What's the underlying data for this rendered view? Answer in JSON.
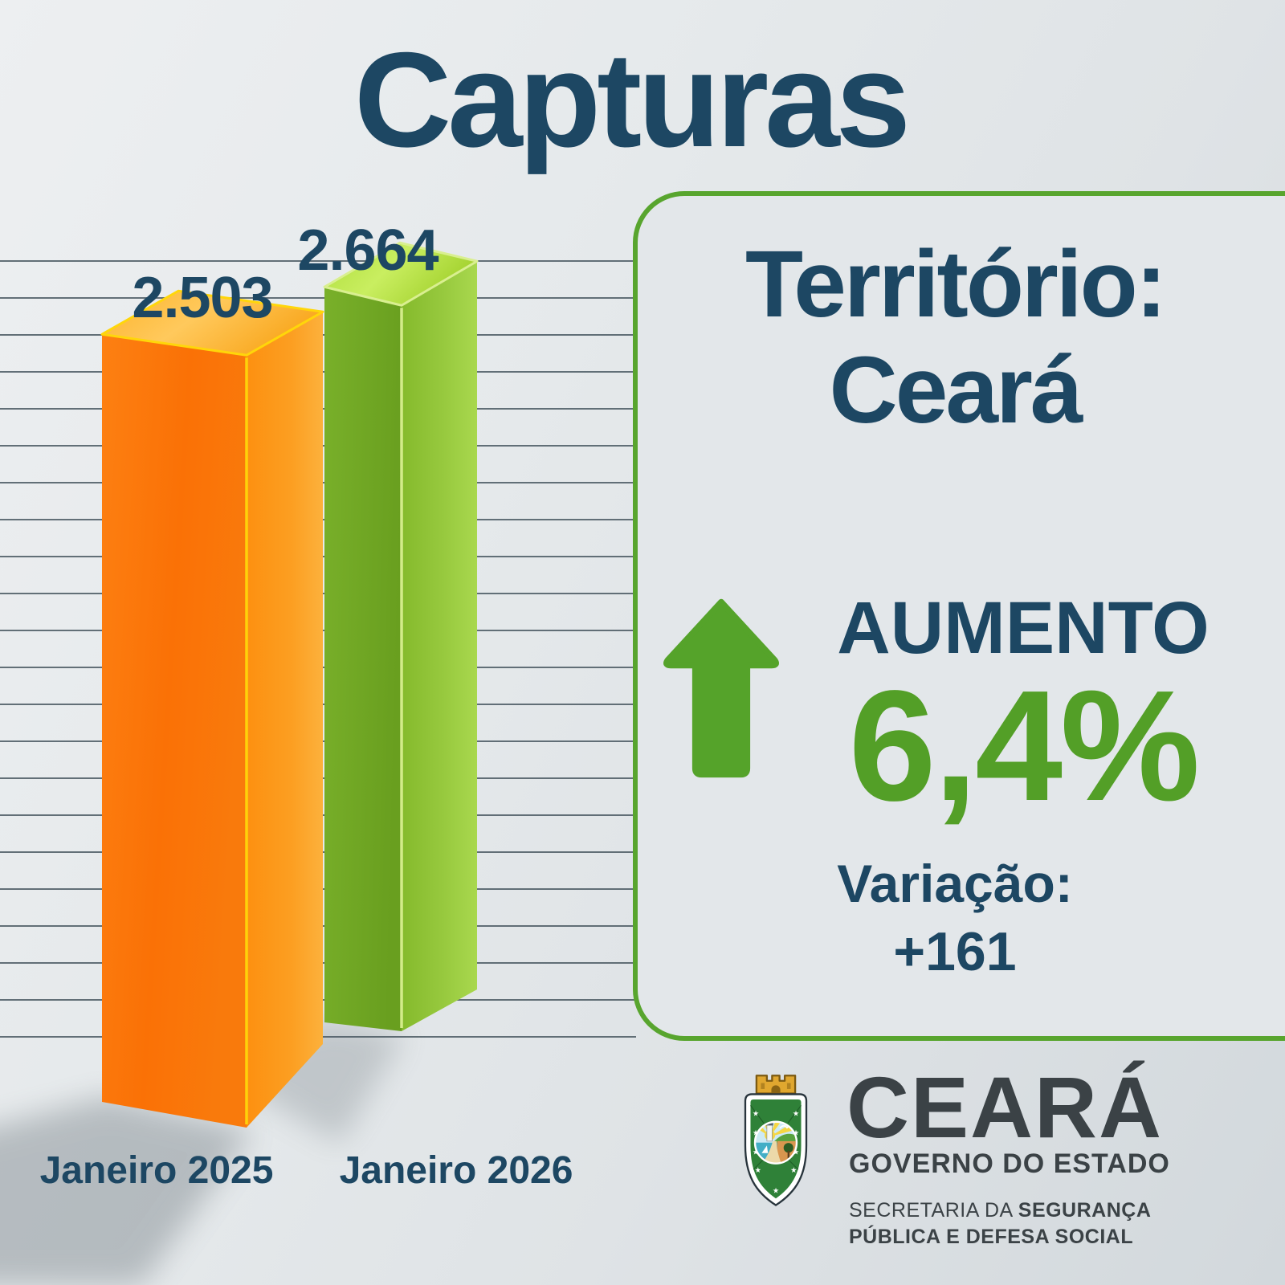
{
  "title": "Capturas",
  "chart_data": {
    "type": "bar",
    "title": "Capturas",
    "categories": [
      "Janeiro 2025",
      "Janeiro 2026"
    ],
    "series": [
      {
        "name": "Capturas",
        "values": [
          2503,
          2664
        ]
      }
    ],
    "value_labels": [
      "2.503",
      "2.664"
    ],
    "bar_colors": [
      "#fb7406",
      "#7fb32c"
    ],
    "ylim": [
      0,
      2800
    ],
    "grid": "horizontal",
    "legend": "none",
    "style": "3d-bars"
  },
  "panel": {
    "territory_label": "Território:",
    "territory_name": "Ceará",
    "trend_icon": "arrow-up",
    "increase_label": "AUMENTO",
    "increase_percent": "6,4%",
    "variation_label": "Variação:",
    "variation_value": "+161"
  },
  "footer_logo": {
    "state_name": "CEARÁ",
    "government_label": "GOVERNO DO ESTADO",
    "secretary_prefix": "SECRETARIA DA ",
    "secretary_bold1": "SEGURANÇA",
    "secretary_bold2": "PÚBLICA E DEFESA SOCIAL"
  },
  "colors": {
    "navy_text": "#1d4763",
    "accent_green": "#58a52e",
    "percent_green": "#539f27",
    "bar_orange": "#fb7406",
    "bar_green": "#7fb32c",
    "background": "#e3e7ea",
    "gridline": "#4b5a63"
  }
}
